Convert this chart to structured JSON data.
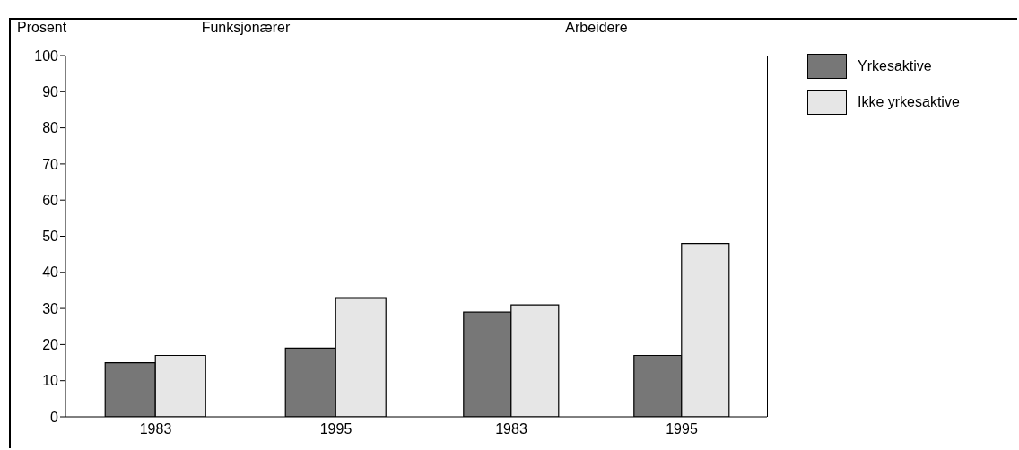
{
  "chart_data": [
    {
      "type": "bar",
      "title": "Funksjonærer",
      "ylabel": "Prosent",
      "categories": [
        "1983",
        "1995"
      ],
      "series": [
        {
          "name": "Yrkesaktive",
          "color": "#777777",
          "values": [
            15,
            19
          ]
        },
        {
          "name": "Ikke yrkesaktive",
          "color": "#e6e6e6",
          "values": [
            17,
            33
          ]
        }
      ],
      "ylim": [
        0,
        100
      ],
      "yticks": [
        0,
        10,
        20,
        30,
        40,
        50,
        60,
        70,
        80,
        90,
        100
      ],
      "grid": false,
      "legend": "right"
    },
    {
      "type": "bar",
      "title": "Arbeidere",
      "categories": [
        "1983",
        "1995"
      ],
      "series": [
        {
          "color": "#777777",
          "values": [
            29,
            17
          ]
        },
        {
          "color": "#e6e6e6",
          "values": [
            31,
            48
          ]
        }
      ],
      "ylim": [
        0,
        100
      ],
      "yticks": [
        0,
        10,
        20,
        30,
        40,
        50,
        60,
        70,
        80,
        90,
        100
      ],
      "grid": false,
      "tick_labels": "x"
    }
  ]
}
